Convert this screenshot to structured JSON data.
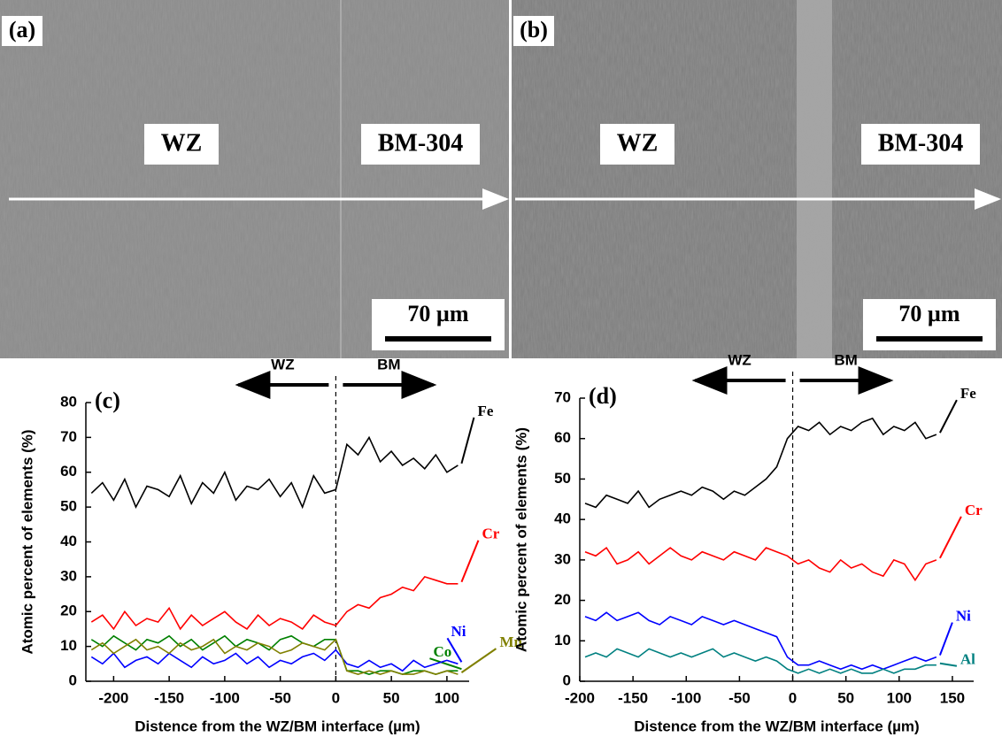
{
  "panels": [
    {
      "label": "(a)",
      "regions": [
        "WZ",
        "BM-304"
      ],
      "scale": "70 µm"
    },
    {
      "label": "(b)",
      "regions": [
        "WZ",
        "BM-304"
      ],
      "scale": "70 µm"
    }
  ],
  "chart_data": [
    {
      "type": "line",
      "panel": "(c)",
      "left_label": "WZ",
      "right_label": "BM",
      "xlabel": "Distence from the WZ/BM interface (µm)",
      "ylabel": "Atomic percent of elements (%)",
      "xlim": [
        -225,
        120
      ],
      "xticks": [
        -200,
        -150,
        -100,
        -50,
        0,
        50,
        100
      ],
      "ylim": [
        0,
        80
      ],
      "yticks": [
        0,
        10,
        20,
        30,
        40,
        50,
        60,
        70,
        80
      ],
      "vline": 0,
      "x": [
        -220,
        -210,
        -200,
        -190,
        -180,
        -170,
        -160,
        -150,
        -140,
        -130,
        -120,
        -110,
        -100,
        -90,
        -80,
        -70,
        -60,
        -50,
        -40,
        -30,
        -20,
        -10,
        0,
        10,
        20,
        30,
        40,
        50,
        60,
        70,
        80,
        90,
        100,
        110
      ],
      "series": [
        {
          "name": "Fe",
          "color": "#000000",
          "values": [
            54,
            57,
            52,
            58,
            50,
            56,
            55,
            53,
            59,
            51,
            57,
            54,
            60,
            52,
            56,
            55,
            58,
            53,
            57,
            50,
            59,
            54,
            55,
            68,
            65,
            70,
            63,
            66,
            62,
            64,
            61,
            65,
            60,
            62
          ]
        },
        {
          "name": "Cr",
          "color": "#ff0000",
          "values": [
            17,
            19,
            15,
            20,
            16,
            18,
            17,
            21,
            15,
            19,
            16,
            18,
            20,
            17,
            15,
            19,
            16,
            18,
            17,
            15,
            19,
            17,
            16,
            20,
            22,
            21,
            24,
            25,
            27,
            26,
            30,
            29,
            28,
            28
          ]
        },
        {
          "name": "Co",
          "color": "#008000",
          "values": [
            12,
            10,
            13,
            11,
            9,
            12,
            11,
            13,
            10,
            12,
            9,
            11,
            13,
            10,
            12,
            11,
            9,
            12,
            13,
            11,
            10,
            12,
            12,
            3,
            3,
            2,
            3,
            3,
            2,
            3,
            3,
            2,
            3,
            3
          ]
        },
        {
          "name": "Ni",
          "color": "#0000ff",
          "values": [
            7,
            5,
            8,
            4,
            6,
            7,
            5,
            8,
            6,
            4,
            7,
            5,
            6,
            8,
            5,
            7,
            4,
            6,
            5,
            7,
            8,
            6,
            9,
            5,
            4,
            6,
            4,
            5,
            3,
            6,
            4,
            5,
            6,
            5
          ]
        },
        {
          "name": "Mn",
          "color": "#808000",
          "values": [
            9,
            11,
            8,
            10,
            12,
            9,
            10,
            8,
            11,
            9,
            10,
            12,
            8,
            10,
            9,
            11,
            10,
            8,
            9,
            11,
            10,
            9,
            12,
            3,
            2,
            3,
            2,
            3,
            2,
            2,
            3,
            2,
            3,
            2
          ]
        }
      ]
    },
    {
      "type": "line",
      "panel": "(d)",
      "left_label": "WZ",
      "right_label": "BM",
      "xlabel": "Distence from the WZ/BM interface (µm)",
      "ylabel": "Atomic percent of elements (%)",
      "xlim": [
        -200,
        170
      ],
      "xticks": [
        -200,
        -150,
        -100,
        -50,
        0,
        50,
        100,
        150
      ],
      "ylim": [
        0,
        70
      ],
      "yticks": [
        0,
        10,
        20,
        30,
        40,
        50,
        60,
        70
      ],
      "vline": 0,
      "x": [
        -195,
        -185,
        -175,
        -165,
        -155,
        -145,
        -135,
        -125,
        -115,
        -105,
        -95,
        -85,
        -75,
        -65,
        -55,
        -45,
        -35,
        -25,
        -15,
        -5,
        5,
        15,
        25,
        35,
        45,
        55,
        65,
        75,
        85,
        95,
        105,
        115,
        125,
        135
      ],
      "series": [
        {
          "name": "Fe",
          "color": "#000000",
          "values": [
            44,
            43,
            46,
            45,
            44,
            47,
            43,
            45,
            46,
            47,
            46,
            48,
            47,
            45,
            47,
            46,
            48,
            50,
            53,
            60,
            63,
            62,
            64,
            61,
            63,
            62,
            64,
            65,
            61,
            63,
            62,
            64,
            60,
            61
          ]
        },
        {
          "name": "Cr",
          "color": "#ff0000",
          "values": [
            32,
            31,
            33,
            29,
            30,
            32,
            29,
            31,
            33,
            31,
            30,
            32,
            31,
            30,
            32,
            31,
            30,
            33,
            32,
            31,
            29,
            30,
            28,
            27,
            30,
            28,
            29,
            27,
            26,
            30,
            29,
            25,
            29,
            30
          ]
        },
        {
          "name": "Ni",
          "color": "#0000ff",
          "values": [
            16,
            15,
            17,
            15,
            16,
            17,
            15,
            14,
            16,
            15,
            14,
            16,
            15,
            14,
            15,
            14,
            13,
            12,
            11,
            6,
            4,
            4,
            5,
            4,
            3,
            4,
            3,
            4,
            3,
            4,
            5,
            6,
            5,
            6
          ]
        },
        {
          "name": "Al",
          "color": "#008080",
          "values": [
            6,
            7,
            6,
            8,
            7,
            6,
            8,
            7,
            6,
            7,
            6,
            7,
            8,
            6,
            7,
            6,
            5,
            6,
            5,
            3,
            2,
            3,
            2,
            3,
            2,
            3,
            2,
            2,
            3,
            2,
            3,
            3,
            4,
            4
          ]
        }
      ]
    }
  ]
}
